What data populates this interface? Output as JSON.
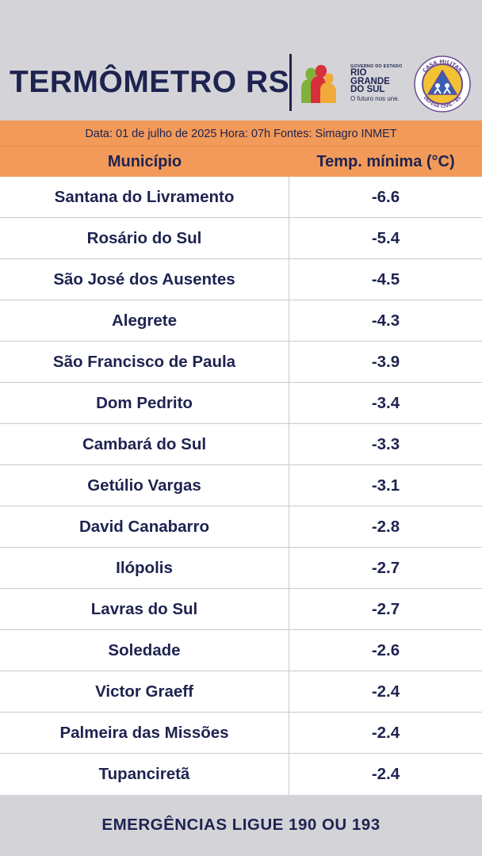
{
  "header": {
    "title": "TERMÔMETRO RS",
    "gov_small": "GOVERNO DO ESTADO",
    "gov_name_1": "RIO",
    "gov_name_2": "GRANDE",
    "gov_name_3": "DO SUL",
    "gov_tagline": "O futuro nos une.",
    "seal_top": "CASA MILITAR",
    "seal_bottom": "DEFESA CIVIL - RS",
    "colors": {
      "navy": "#1e2350",
      "orange": "#f29a5a"
    }
  },
  "info_bar": "Data: 01 de julho de 2025 Hora: 07h Fontes: Simagro INMET",
  "table": {
    "headers": [
      "Município",
      "Temp. mínima (°C)"
    ],
    "rows": [
      [
        "Santana do Livramento",
        "-6.6"
      ],
      [
        "Rosário do Sul",
        "-5.4"
      ],
      [
        "São José dos Ausentes",
        "-4.5"
      ],
      [
        "Alegrete",
        "-4.3"
      ],
      [
        "São Francisco de Paula",
        "-3.9"
      ],
      [
        "Dom Pedrito",
        "-3.4"
      ],
      [
        "Cambará do Sul",
        "-3.3"
      ],
      [
        "Getúlio Vargas",
        "-3.1"
      ],
      [
        "David Canabarro",
        "-2.8"
      ],
      [
        "Ilópolis",
        "-2.7"
      ],
      [
        "Lavras do Sul",
        "-2.7"
      ],
      [
        "Soledade",
        "-2.6"
      ],
      [
        "Victor Graeff",
        "-2.4"
      ],
      [
        "Palmeira das Missões",
        "-2.4"
      ],
      [
        "Tupanciretã",
        "-2.4"
      ]
    ]
  },
  "footer": "EMERGÊNCIAS LIGUE 190 OU 193"
}
